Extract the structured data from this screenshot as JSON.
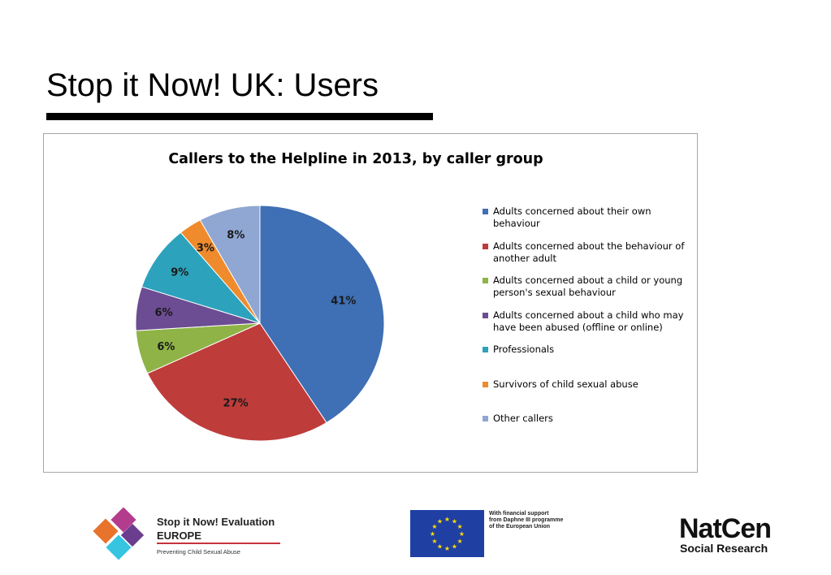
{
  "slide": {
    "title": "Stop it Now! UK: Users"
  },
  "chart_data": {
    "type": "pie",
    "title": "Callers to the Helpline in 2013, by caller group",
    "legend_position": "right",
    "series": [
      {
        "name": "Adults concerned about their own behaviour",
        "value": 41,
        "label": "41%",
        "color": "#3f6fb5"
      },
      {
        "name": "Adults concerned about the behaviour of another adult",
        "value": 27,
        "label": "27%",
        "color": "#be3c3a"
      },
      {
        "name": "Adults concerned about a child or young person's sexual behaviour",
        "value": 6,
        "label": "6%",
        "color": "#8fb346"
      },
      {
        "name": "Adults concerned about a child who may have been abused (offline or online)",
        "value": 6,
        "label": "6%",
        "color": "#6c4c92"
      },
      {
        "name": "Professionals",
        "value": 9,
        "label": "9%",
        "color": "#2da2bc"
      },
      {
        "name": "Survivors of child sexual abuse",
        "value": 3,
        "label": "3%",
        "color": "#ef8b2c"
      },
      {
        "name": "Other callers",
        "value": 8,
        "label": "8%",
        "color": "#8fa7d2"
      }
    ],
    "legend_lines": [
      [
        "Adults concerned about their own",
        "behaviour"
      ],
      [
        "Adults concerned about the behaviour of",
        "another adult"
      ],
      [
        "Adults concerned about a child or young",
        "person's sexual behaviour"
      ],
      [
        "Adults concerned about a child who may",
        "have been abused (offline or online)"
      ],
      [
        "Professionals"
      ],
      [
        "Survivors of child sexual abuse"
      ],
      [
        "Other callers"
      ]
    ]
  },
  "footer": {
    "evaluation_logo": {
      "line1": "Stop it Now! Evaluation",
      "line2": "EUROPE",
      "tagline": "Preventing Child Sexual Abuse",
      "colors": [
        "#e8732c",
        "#b43c8c",
        "#6a3d8f",
        "#35c5e0"
      ]
    },
    "eu_logo": {
      "text_lines": [
        "With financial support",
        "from Daphne III programme",
        "of the European Union"
      ],
      "flag_color": "#1f3fa3",
      "star_color": "#ffdd00"
    },
    "natcen_logo": {
      "line1": "NatCen",
      "line2": "Social Research"
    }
  }
}
